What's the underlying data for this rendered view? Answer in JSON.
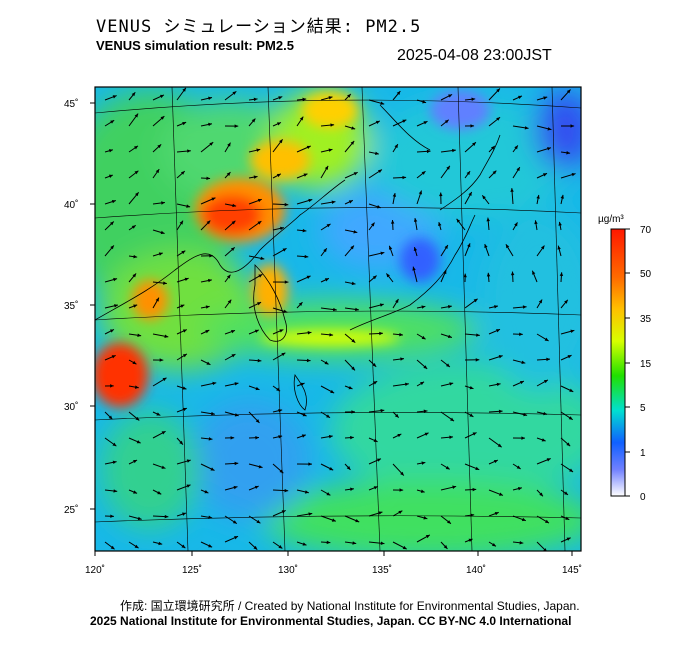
{
  "title_jp": "VENUS シミュレーション結果: PM2.5",
  "title_en": "VENUS simulation result: PM2.5",
  "timestamp": "2025-04-08 23:00JST",
  "colorbar": {
    "unit": "µg/m³",
    "levels": [
      "70",
      "50",
      "35",
      "15",
      "5",
      "1",
      "0"
    ],
    "colors": [
      "#ff2000",
      "#ffa000",
      "#f0ff00",
      "#20e000",
      "#00e8e0",
      "#1060ff",
      "#ffffff"
    ]
  },
  "lon_labels": [
    "120˚",
    "125˚",
    "130˚",
    "135˚",
    "140˚",
    "145˚"
  ],
  "lat_labels": [
    "45˚",
    "40˚",
    "35˚",
    "30˚",
    "25˚"
  ],
  "footer": {
    "credit": "作成: 国立環境研究所 / Created by National Institute for Environmental Studies, Japan.",
    "license": "2025 National Institute for Environmental Studies, Japan. CC BY-NC 4.0 International"
  }
}
